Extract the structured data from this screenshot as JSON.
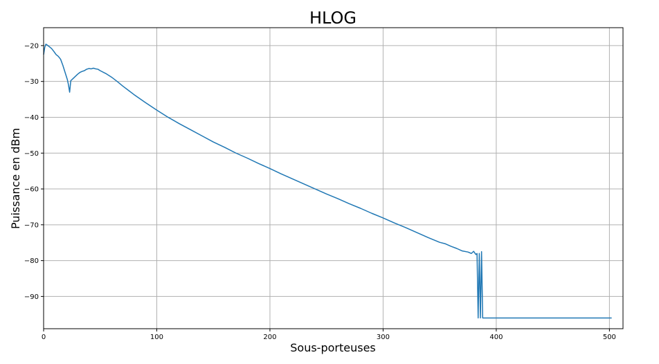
{
  "chart_data": {
    "type": "line",
    "title": "HLOG",
    "xlabel": "Sous-porteuses",
    "ylabel": "Puissance en dBm",
    "xlim": [
      0,
      512
    ],
    "ylim": [
      -99,
      -15
    ],
    "xticks": [
      0,
      100,
      200,
      300,
      400,
      500
    ],
    "yticks": [
      -20,
      -30,
      -40,
      -50,
      -60,
      -70,
      -80,
      -90
    ],
    "xtick_labels": [
      "0",
      "100",
      "200",
      "300",
      "400",
      "500"
    ],
    "ytick_labels": [
      "−20",
      "−30",
      "−40",
      "−50",
      "−60",
      "−70",
      "−80",
      "−90"
    ],
    "grid": true,
    "line_color": "#1f77b4",
    "series": [
      {
        "points": [
          [
            0,
            -22.5
          ],
          [
            1,
            -20.5
          ],
          [
            2,
            -19.6
          ],
          [
            3,
            -19.8
          ],
          [
            5,
            -20.3
          ],
          [
            7,
            -20.8
          ],
          [
            9,
            -21.6
          ],
          [
            11,
            -22.5
          ],
          [
            13,
            -23.0
          ],
          [
            15,
            -23.8
          ],
          [
            17,
            -25.5
          ],
          [
            19,
            -27.5
          ],
          [
            21,
            -29.5
          ],
          [
            22,
            -31.0
          ],
          [
            23,
            -33.0
          ],
          [
            24,
            -29.8
          ],
          [
            26,
            -29.2
          ],
          [
            28,
            -28.6
          ],
          [
            30,
            -28.0
          ],
          [
            32,
            -27.5
          ],
          [
            34,
            -27.2
          ],
          [
            36,
            -27.0
          ],
          [
            38,
            -26.6
          ],
          [
            40,
            -26.4
          ],
          [
            42,
            -26.5
          ],
          [
            44,
            -26.3
          ],
          [
            46,
            -26.5
          ],
          [
            48,
            -26.6
          ],
          [
            50,
            -27.0
          ],
          [
            55,
            -27.8
          ],
          [
            60,
            -28.8
          ],
          [
            65,
            -30.0
          ],
          [
            70,
            -31.3
          ],
          [
            75,
            -32.5
          ],
          [
            80,
            -33.7
          ],
          [
            90,
            -35.9
          ],
          [
            100,
            -38.0
          ],
          [
            110,
            -40.0
          ],
          [
            120,
            -41.8
          ],
          [
            130,
            -43.5
          ],
          [
            140,
            -45.2
          ],
          [
            150,
            -46.9
          ],
          [
            160,
            -48.4
          ],
          [
            170,
            -50.0
          ],
          [
            180,
            -51.4
          ],
          [
            190,
            -52.9
          ],
          [
            200,
            -54.3
          ],
          [
            210,
            -55.8
          ],
          [
            220,
            -57.2
          ],
          [
            230,
            -58.6
          ],
          [
            240,
            -60.0
          ],
          [
            250,
            -61.4
          ],
          [
            260,
            -62.7
          ],
          [
            270,
            -64.1
          ],
          [
            280,
            -65.4
          ],
          [
            290,
            -66.8
          ],
          [
            300,
            -68.1
          ],
          [
            310,
            -69.5
          ],
          [
            320,
            -70.8
          ],
          [
            330,
            -72.2
          ],
          [
            340,
            -73.6
          ],
          [
            350,
            -74.9
          ],
          [
            355,
            -75.3
          ],
          [
            360,
            -76.0
          ],
          [
            365,
            -76.6
          ],
          [
            370,
            -77.3
          ],
          [
            375,
            -77.6
          ],
          [
            378,
            -78.0
          ],
          [
            380,
            -77.4
          ],
          [
            382,
            -78.3
          ],
          [
            383,
            -78.0
          ],
          [
            384,
            -96.0
          ],
          [
            385,
            -78.0
          ],
          [
            386,
            -96.0
          ],
          [
            387,
            -77.5
          ],
          [
            388,
            -96.0
          ],
          [
            389,
            -96.0
          ],
          [
            400,
            -96.0
          ],
          [
            450,
            -96.0
          ],
          [
            502,
            -96.0
          ]
        ]
      }
    ]
  }
}
